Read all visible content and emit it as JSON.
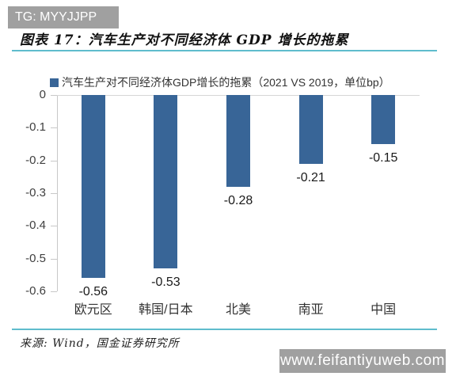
{
  "watermarks": {
    "top_badge_text": "TG: MYYJJPP",
    "bottom_badge_text": "www.feifantiyuweb.com",
    "badge_bg": "#a0a0a0"
  },
  "header": {
    "title": "图表 17：汽车生产对不同经济体 GDP 增长的拖累",
    "underline_color": "#5fbccd"
  },
  "legend": {
    "label": "汽车生产对不同经济体GDP增长的拖累（2021 VS 2019，单位bp）",
    "marker_color": "#386597"
  },
  "chart_data": {
    "type": "bar",
    "title": "汽车生产对不同经济体GDP增长的拖累（2021 VS 2019，单位bp）",
    "categories": [
      "欧元区",
      "韩国/日本",
      "北美",
      "南亚",
      "中国"
    ],
    "values": [
      -0.56,
      -0.53,
      -0.28,
      -0.21,
      -0.15
    ],
    "data_labels": [
      "-0.56",
      "-0.53",
      "-0.28",
      "-0.21",
      "-0.15"
    ],
    "xlabel": "",
    "ylabel": "",
    "ylim": [
      -0.6,
      0
    ],
    "yticks": [
      0,
      -0.1,
      -0.2,
      -0.3,
      -0.4,
      -0.5,
      -0.6
    ],
    "ytick_labels": [
      "0",
      "-0.1",
      "-0.2",
      "-0.3",
      "-0.4",
      "-0.5",
      "-0.6"
    ],
    "bar_color": "#386597",
    "grid": false,
    "legend_position": "top"
  },
  "footer": {
    "source": "来源: Wind，国金证券研究所"
  }
}
